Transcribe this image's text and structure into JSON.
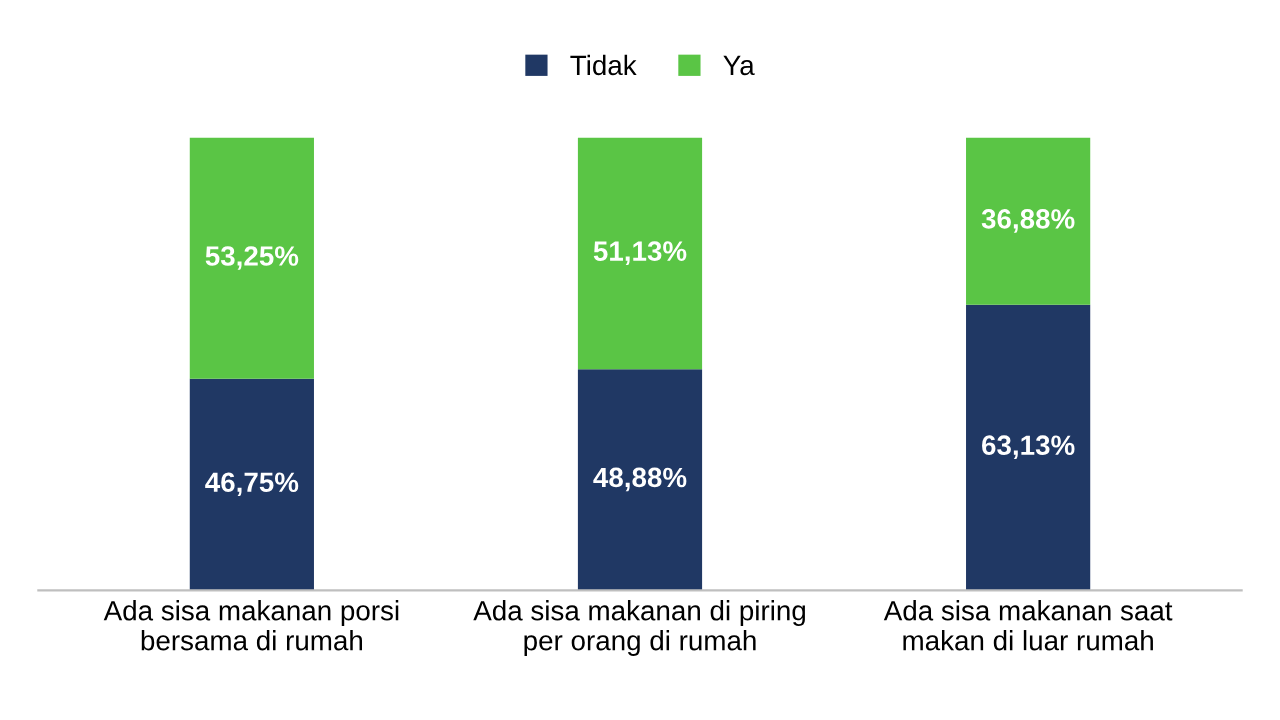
{
  "chart_data": {
    "type": "bar",
    "stacked": true,
    "categories": [
      "Ada sisa makanan porsi bersama di rumah",
      "Ada sisa makanan di piring per orang di rumah",
      "Ada sisa makanan saat makan di luar rumah"
    ],
    "series": [
      {
        "name": "Tidak",
        "color": "#203864",
        "values": [
          46.75,
          48.88,
          63.13
        ],
        "value_labels": [
          "46,75%",
          "48,88%",
          "63,13%"
        ]
      },
      {
        "name": "Ya",
        "color": "#5ac545",
        "values": [
          53.25,
          51.13,
          36.88
        ],
        "value_labels": [
          "53,25%",
          "51,13%",
          "36,88%"
        ]
      }
    ],
    "legend": "top",
    "grid": false
  }
}
